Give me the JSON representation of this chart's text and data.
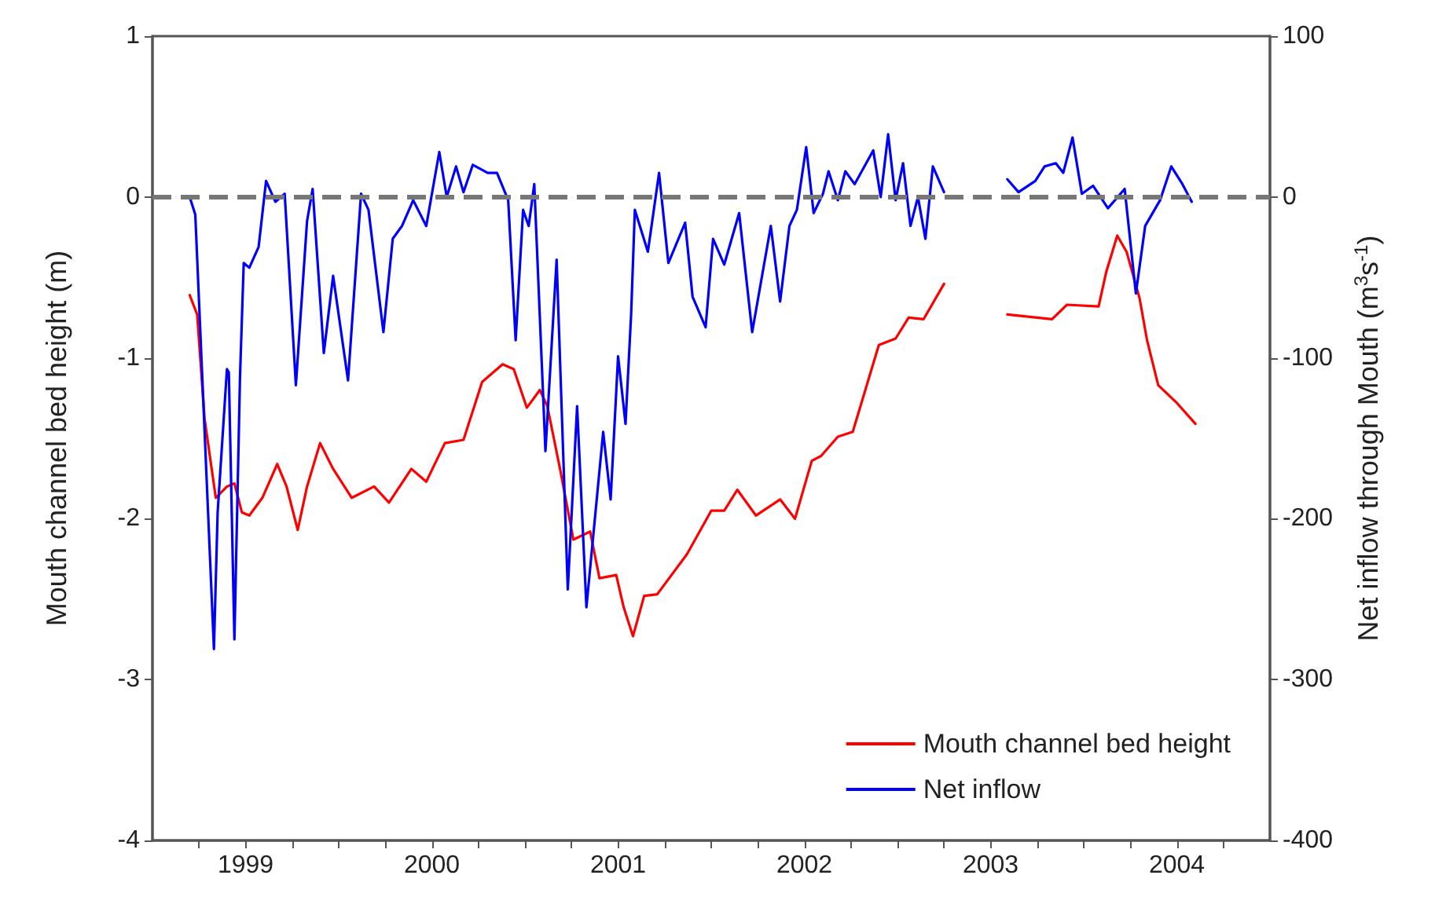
{
  "chart_data": {
    "type": "line",
    "xlabel": null,
    "ylabel": "Mouth channel bed height (m)",
    "y2label": "Net inflow through Mouth (m$^{3}$s$^{-1}$)",
    "xlim": [
      1998.5,
      2004.5
    ],
    "xticks": [
      {
        "value": 1998.75,
        "label": null
      },
      1999,
      {
        "value": 1999.25,
        "label": null
      },
      {
        "value": 1999.5,
        "label": null
      },
      {
        "value": 1999.75,
        "label": null
      },
      2000,
      {
        "value": 2000.25,
        "label": null
      },
      {
        "value": 2000.5,
        "label": null
      },
      {
        "value": 2000.75,
        "label": null
      },
      2001,
      {
        "value": 2001.25,
        "label": null
      },
      {
        "value": 2001.5,
        "label": null
      },
      {
        "value": 2001.75,
        "label": null
      },
      2002,
      {
        "value": 2002.25,
        "label": null
      },
      {
        "value": 2002.5,
        "label": null
      },
      {
        "value": 2002.75,
        "label": null
      },
      2003,
      {
        "value": 2003.25,
        "label": null
      },
      {
        "value": 2003.5,
        "label": null
      },
      {
        "value": 2003.75,
        "label": null
      },
      2004,
      {
        "value": 2004.25,
        "label": null
      }
    ],
    "ylim": [
      -4,
      1
    ],
    "yticks": [
      -4,
      -3,
      -2,
      -1,
      0,
      1
    ],
    "y2lim": [
      -400,
      100
    ],
    "y2ticks": [
      -400,
      -300,
      -200,
      -100,
      0,
      100
    ],
    "grid": false,
    "legend": "bottom right",
    "marker": "none",
    "ref_lines": [
      {
        "axis": "y",
        "value": 0,
        "label": null,
        "color": "#777777",
        "line_style": "dashed"
      }
    ],
    "series": [
      {
        "name": "Mouth channel bed height",
        "color": "#ff0000",
        "line_style": "solid",
        "x": [
          1998.7,
          1998.74,
          1998.78,
          1998.84,
          1998.9,
          1998.94,
          1998.98,
          1999.02,
          1999.09,
          1999.17,
          1999.22,
          1999.28,
          1999.33,
          1999.4,
          1999.47,
          1999.57,
          1999.69,
          1999.77,
          1999.89,
          1999.97,
          2000.07,
          2000.17,
          2000.27,
          2000.38,
          2000.44,
          2000.51,
          2000.58,
          2000.62,
          2000.69,
          2000.76,
          2000.85,
          2000.9,
          2000.99,
          2001.03,
          2001.08,
          2001.14,
          2001.21,
          2001.37,
          2001.5,
          2001.57,
          2001.64,
          2001.74,
          2001.87,
          2001.95,
          2002.04,
          2002.09,
          2002.18,
          2002.26,
          2002.4,
          2002.49,
          2002.56,
          2002.64,
          2002.75,
          2002.9,
          2003.09,
          2003.33,
          2003.41,
          2003.58,
          2003.62,
          2003.68,
          2003.73,
          2003.8,
          2003.84,
          2003.9,
          2004.0,
          2004.1
        ],
        "values": [
          -0.61,
          -0.73,
          -1.38,
          -1.87,
          -1.8,
          -1.78,
          -1.96,
          -1.98,
          -1.87,
          -1.66,
          -1.8,
          -2.07,
          -1.8,
          -1.53,
          -1.69,
          -1.87,
          -1.8,
          -1.9,
          -1.69,
          -1.77,
          -1.53,
          -1.51,
          -1.15,
          -1.04,
          -1.07,
          -1.31,
          -1.2,
          -1.3,
          -1.7,
          -2.13,
          -2.08,
          -2.37,
          -2.35,
          -2.55,
          -2.73,
          -2.48,
          -2.47,
          -2.22,
          -1.95,
          -1.95,
          -1.82,
          -1.98,
          -1.88,
          -2.0,
          -1.64,
          -1.61,
          -1.49,
          -1.46,
          -0.92,
          -0.88,
          -0.75,
          -0.76,
          -0.54,
          null,
          -0.73,
          -0.76,
          -0.67,
          -0.68,
          -0.47,
          -0.24,
          -0.34,
          -0.63,
          -0.89,
          -1.17,
          -1.28,
          -1.41
        ]
      },
      {
        "name": "Net inflow",
        "color": "#0000ff",
        "axis": "y2",
        "line_style": "solid",
        "x": [
          1998.7,
          1998.73,
          1998.83,
          1998.85,
          1998.9,
          1998.91,
          1998.94,
          1998.97,
          1998.99,
          1999.02,
          1999.07,
          1999.11,
          1999.16,
          1999.21,
          1999.27,
          1999.33,
          1999.36,
          1999.42,
          1999.47,
          1999.55,
          1999.62,
          1999.66,
          1999.74,
          1999.79,
          1999.84,
          1999.9,
          1999.97,
          2000.04,
          2000.08,
          2000.13,
          2000.17,
          2000.22,
          2000.3,
          2000.35,
          2000.41,
          2000.45,
          2000.49,
          2000.52,
          2000.55,
          2000.61,
          2000.67,
          2000.73,
          2000.78,
          2000.83,
          2000.92,
          2000.96,
          2001.0,
          2001.04,
          2001.07,
          2001.09,
          2001.16,
          2001.22,
          2001.27,
          2001.36,
          2001.4,
          2001.47,
          2001.51,
          2001.57,
          2001.65,
          2001.72,
          2001.82,
          2001.87,
          2001.92,
          2001.96,
          2002.01,
          2002.05,
          2002.1,
          2002.13,
          2002.18,
          2002.22,
          2002.27,
          2002.37,
          2002.41,
          2002.45,
          2002.49,
          2002.53,
          2002.57,
          2002.61,
          2002.65,
          2002.69,
          2002.75,
          2002.9,
          2003.09,
          2003.15,
          2003.24,
          2003.29,
          2003.35,
          2003.39,
          2003.44,
          2003.49,
          2003.55,
          2003.63,
          2003.72,
          2003.78,
          2003.83,
          2003.91,
          2003.97,
          2004.03,
          2004.08
        ],
        "values": [
          0,
          -11,
          -281,
          -196,
          -107,
          -109,
          -275,
          -112,
          -41,
          -44,
          -31,
          10,
          -3,
          2,
          -117,
          -15,
          5,
          -97,
          -49,
          -114,
          2,
          -8,
          -84,
          -26,
          -18,
          -2,
          -18,
          28,
          0,
          19,
          3,
          20,
          15,
          15,
          -2,
          -89,
          -8,
          -18,
          8,
          -158,
          -39,
          -244,
          -130,
          -255,
          -146,
          -188,
          -99,
          -141,
          -73,
          -8,
          -34,
          15,
          -41,
          -16,
          -62,
          -81,
          -26,
          -42,
          -10,
          -84,
          -18,
          -65,
          -18,
          -8,
          31,
          -10,
          2,
          16,
          -2,
          16,
          8,
          29,
          0,
          39,
          -2,
          21,
          -18,
          0,
          -26,
          19,
          3,
          null,
          11,
          3,
          10,
          19,
          21,
          15,
          37,
          2,
          7,
          -7,
          5,
          -60,
          -18,
          -2,
          19,
          8,
          -3
        ]
      }
    ]
  }
}
